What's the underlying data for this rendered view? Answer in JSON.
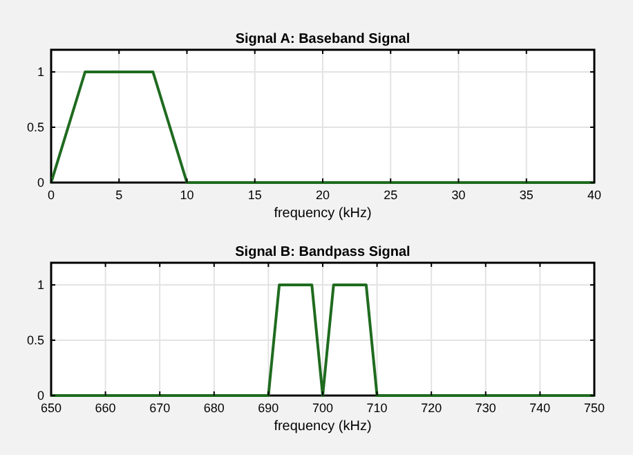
{
  "chart_data": [
    {
      "type": "line",
      "title": "Signal A: Baseband Signal",
      "xlabel": "frequency (kHz)",
      "x": [
        0,
        2.5,
        7.5,
        10,
        40
      ],
      "series": [
        {
          "color": "#1f6b1f",
          "values": [
            0,
            1,
            1,
            0,
            0
          ]
        }
      ],
      "xlim": [
        0,
        40
      ],
      "xticks": [
        0,
        5,
        10,
        15,
        20,
        25,
        30,
        35,
        40
      ],
      "ylim": [
        0,
        1.2
      ],
      "yticks": [
        0,
        0.5,
        1
      ],
      "grid": true
    },
    {
      "type": "line",
      "title": "Signal B: Bandpass Signal",
      "xlabel": "frequency (kHz)",
      "x": [
        650,
        690,
        692,
        698,
        700,
        702,
        708,
        710,
        750
      ],
      "series": [
        {
          "color": "#1f6b1f",
          "values": [
            0,
            0,
            1,
            1,
            0,
            1,
            1,
            0,
            0
          ]
        }
      ],
      "xlim": [
        650,
        750
      ],
      "xticks": [
        650,
        660,
        670,
        680,
        690,
        700,
        710,
        720,
        730,
        740,
        750
      ],
      "ylim": [
        0,
        1.2
      ],
      "yticks": [
        0,
        0.5,
        1
      ],
      "grid": true
    }
  ]
}
